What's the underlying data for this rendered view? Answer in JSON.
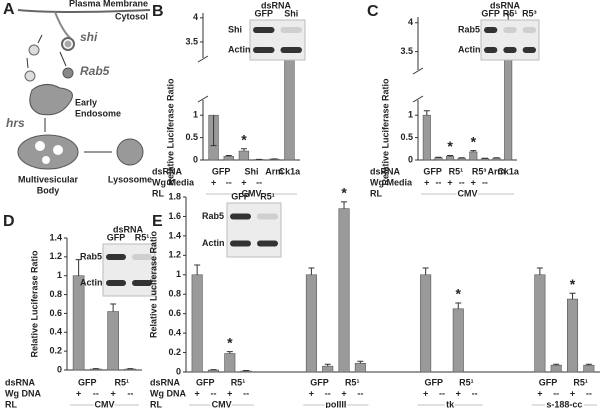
{
  "diagram": {
    "panel": "A",
    "membrane": "Plasma Membrane",
    "cytosol": "Cytosol",
    "shi": "shi",
    "rab5": "Rab5",
    "early_endosome": [
      "Early",
      "Endosome"
    ],
    "hrs": "hrs",
    "mvb": [
      "Multivesicular",
      "Body"
    ],
    "lysosome": "Lysosome"
  },
  "chart_data": [
    {
      "type": "bar",
      "panel": "B",
      "y_label": "Relative Luciferase Ratio",
      "ylim": [
        0,
        4.1
      ],
      "ybreak": [
        1.25,
        3.25
      ],
      "yticks": [
        0,
        0.5,
        1,
        3.5,
        4
      ],
      "color": "#9a9a9a",
      "row_labels": [
        "dsRNA",
        "Wg Media",
        "RL"
      ],
      "blot": {
        "title": "dsRNA",
        "lanes": [
          "GFP",
          "Shi"
        ],
        "rows": [
          "Shi",
          "Actin"
        ]
      },
      "rl": [
        {
          "label": "CMV",
          "groups": [
            {
              "name": "GFP",
              "wg": [
                "+",
                "--"
              ],
              "values": [
                1.0,
                0.08
              ],
              "errors": [
                0.35,
                0.02
              ],
              "stars": [
                null,
                null
              ]
            },
            {
              "name": "Shi",
              "wg": [
                "+",
                "--"
              ],
              "values": [
                0.2,
                0.01
              ],
              "errors": [
                0.05,
                0.005
              ],
              "stars": [
                "*",
                null
              ]
            },
            {
              "name": "Arm",
              "wg": [
                null
              ],
              "values": [
                0.02
              ],
              "errors": [
                0.005
              ],
              "stars": [
                null
              ]
            },
            {
              "name": "Ck1a",
              "wg": [
                null
              ],
              "values": [
                3.52
              ],
              "errors": [
                0.32
              ],
              "stars": [
                null
              ]
            }
          ]
        }
      ]
    },
    {
      "type": "bar",
      "panel": "C",
      "y_label": "Relative Luciferase Ratio",
      "ylim": [
        0,
        4.1
      ],
      "ybreak": [
        1.25,
        3.25
      ],
      "yticks": [
        0,
        0.5,
        1,
        3.5,
        4
      ],
      "color": "#9a9a9a",
      "row_labels": [
        "dsRNA",
        "Wg Media",
        "RL"
      ],
      "blot": {
        "title": "dsRNA",
        "lanes": [
          "GFP",
          "R5¹",
          "R5³"
        ],
        "rows": [
          "Rab5",
          "Actin"
        ]
      },
      "rl": [
        {
          "label": "CMV",
          "groups": [
            {
              "name": "GFP",
              "wg": [
                "+",
                "--"
              ],
              "values": [
                1.0,
                0.05
              ],
              "errors": [
                0.1,
                0.01
              ],
              "stars": [
                null,
                null
              ]
            },
            {
              "name": "R5¹",
              "wg": [
                "+",
                "--"
              ],
              "values": [
                0.08,
                0.04
              ],
              "errors": [
                0.02,
                0.01
              ],
              "stars": [
                "*",
                null
              ]
            },
            {
              "name": "R5³",
              "wg": [
                "+",
                "--"
              ],
              "values": [
                0.18,
                0.03
              ],
              "errors": [
                0.03,
                0.01
              ],
              "stars": [
                "*",
                null
              ]
            },
            {
              "name": "Arm",
              "wg": [
                null
              ],
              "values": [
                0.04
              ],
              "errors": [
                0.01
              ],
              "stars": [
                null
              ]
            },
            {
              "name": "Ck1a",
              "wg": [
                null
              ],
              "values": [
                3.75
              ],
              "errors": [
                0.4
              ],
              "stars": [
                null
              ]
            }
          ]
        }
      ]
    },
    {
      "type": "bar",
      "panel": "D",
      "y_label": "Relative Luciferase Ratio",
      "ylim": [
        0,
        1.4
      ],
      "yticks": [
        0,
        0.2,
        0.4,
        0.6,
        0.8,
        1,
        1.2,
        1.4
      ],
      "color": "#9a9a9a",
      "row_labels": [
        "dsRNA",
        "Wg DNA",
        "RL"
      ],
      "blot": {
        "title": "dsRNA",
        "lanes": [
          "GFP",
          "R5¹"
        ],
        "rows": [
          "Rab5",
          "Actin"
        ]
      },
      "rl": [
        {
          "label": "CMV",
          "groups": [
            {
              "name": "GFP",
              "wg": [
                "+",
                "--"
              ],
              "values": [
                1.0,
                0.01
              ],
              "errors": [
                0.17,
                0.005
              ],
              "stars": [
                null,
                null
              ]
            },
            {
              "name": "R5¹",
              "wg": [
                "+",
                "--"
              ],
              "values": [
                0.62,
                0.01
              ],
              "errors": [
                0.08,
                0.005
              ],
              "stars": [
                "*",
                null
              ]
            }
          ]
        }
      ]
    },
    {
      "type": "bar",
      "panel": "E",
      "y_label": "Relative Luciferase Ratio",
      "ylim": [
        0,
        1.8
      ],
      "yticks": [
        0,
        0.2,
        0.4,
        0.6,
        0.8,
        1,
        1.2,
        1.4,
        1.6,
        1.8
      ],
      "color": "#9a9a9a",
      "row_labels": [
        "dsRNA",
        "Wg DNA",
        "RL"
      ],
      "blot": {
        "lanes": [
          "GFP",
          "R5¹"
        ],
        "rows": [
          "Rab5",
          "Actin"
        ]
      },
      "rl": [
        {
          "label": "CMV",
          "groups": [
            {
              "name": "GFP",
              "wg": [
                "+",
                "--"
              ],
              "values": [
                1.0,
                0.02
              ],
              "errors": [
                0.1,
                0.005
              ],
              "stars": [
                null,
                null
              ]
            },
            {
              "name": "R5¹",
              "wg": [
                "+",
                "--"
              ],
              "values": [
                0.19,
                0.01
              ],
              "errors": [
                0.02,
                0.005
              ],
              "stars": [
                "*",
                null
              ]
            }
          ]
        },
        {
          "label": "polIII",
          "groups": [
            {
              "name": "GFP",
              "wg": [
                "+",
                "--"
              ],
              "values": [
                1.0,
                0.06
              ],
              "errors": [
                0.07,
                0.02
              ],
              "stars": [
                null,
                null
              ]
            },
            {
              "name": "R5¹",
              "wg": [
                "+",
                "--"
              ],
              "values": [
                1.68,
                0.09
              ],
              "errors": [
                0.07,
                0.02
              ],
              "stars": [
                "*",
                null
              ]
            }
          ]
        },
        {
          "label": "tk",
          "groups": [
            {
              "name": "GFP",
              "wg": [
                "+",
                "--"
              ],
              "values": [
                1.0,
                0.0
              ],
              "errors": [
                0.07,
                0.0
              ],
              "stars": [
                null,
                null
              ]
            },
            {
              "name": "R5¹",
              "wg": [
                "+",
                "--"
              ],
              "values": [
                0.65,
                0.0
              ],
              "errors": [
                0.06,
                0.0
              ],
              "stars": [
                "*",
                null
              ]
            }
          ]
        },
        {
          "label": "s-188-cc",
          "groups": [
            {
              "name": "GFP",
              "wg": [
                "+",
                "--"
              ],
              "values": [
                1.0,
                0.07
              ],
              "errors": [
                0.07,
                0.01
              ],
              "stars": [
                null,
                null
              ]
            },
            {
              "name": "R5¹",
              "wg": [
                "+",
                "--"
              ],
              "values": [
                0.75,
                0.07
              ],
              "errors": [
                0.06,
                0.01
              ],
              "stars": [
                "*",
                null
              ]
            }
          ]
        }
      ]
    }
  ]
}
